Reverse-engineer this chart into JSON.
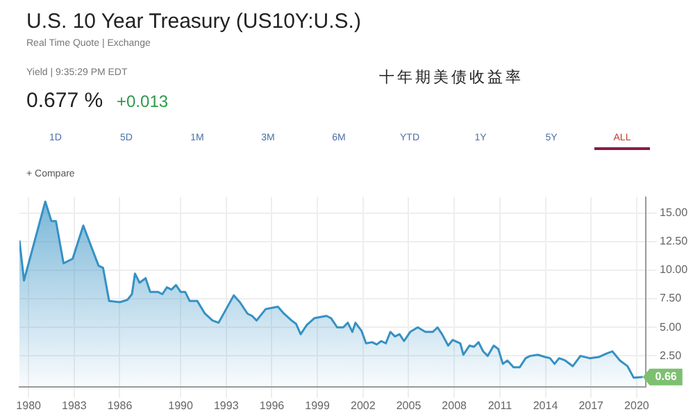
{
  "chart_data": {
    "type": "area",
    "title": "U.S. 10 Year Treasury (US10Y:U.S.)",
    "annotations": [
      "Real Time Quote | Exchange",
      "Yield | 9:35:29 PM EDT",
      "0.677 %",
      "+0.013",
      "十年期美债收益率",
      "1D",
      "5D",
      "1M",
      "3M",
      "6M",
      "YTD",
      "1Y",
      "5Y",
      "ALL",
      "+ Compare",
      {
        "text": "0.66",
        "x": 2020.4,
        "y": 0.66
      }
    ],
    "x": [
      1979.4,
      1979.7,
      1981.1,
      1981.5,
      1981.8,
      1982.3,
      1982.9,
      1983.6,
      1984.6,
      1984.9,
      1985.3,
      1986.0,
      1986.5,
      1986.8,
      1987.0,
      1987.3,
      1987.7,
      1988.0,
      1988.5,
      1988.8,
      1989.1,
      1989.4,
      1989.7,
      1990.0,
      1990.3,
      1990.6,
      1991.1,
      1991.6,
      1992.1,
      1992.5,
      1993.0,
      1993.5,
      1993.9,
      1994.4,
      1994.7,
      1995.0,
      1995.6,
      1996.0,
      1996.4,
      1996.8,
      1997.3,
      1997.6,
      1997.9,
      1998.3,
      1998.8,
      1999.6,
      1999.9,
      2000.3,
      2000.7,
      2001.0,
      2001.3,
      2001.5,
      2001.9,
      2002.2,
      2002.6,
      2002.9,
      2003.2,
      2003.5,
      2003.8,
      2004.1,
      2004.4,
      2004.7,
      2005.1,
      2005.6,
      2006.1,
      2006.6,
      2006.9,
      2007.2,
      2007.6,
      2007.9,
      2008.4,
      2008.6,
      2009.0,
      2009.3,
      2009.6,
      2009.9,
      2010.2,
      2010.6,
      2010.9,
      2011.2,
      2011.5,
      2011.9,
      2012.3,
      2012.7,
      2013.0,
      2013.5,
      2014.0,
      2014.3,
      2014.6,
      2014.9,
      2015.3,
      2015.8,
      2016.3,
      2016.9,
      2017.5,
      2018.0,
      2018.4,
      2018.9,
      2019.4,
      2019.8,
      2020.4
    ],
    "series": [
      {
        "color": "#3591c4",
        "values": [
          12.6,
          9.1,
          16.0,
          14.3,
          14.3,
          10.6,
          11.0,
          13.9,
          10.4,
          10.2,
          7.3,
          7.2,
          7.4,
          7.9,
          9.7,
          8.9,
          9.3,
          8.1,
          8.1,
          7.9,
          8.5,
          8.3,
          8.7,
          8.1,
          8.1,
          7.3,
          7.3,
          6.2,
          5.6,
          5.4,
          6.6,
          7.8,
          7.2,
          6.2,
          6.0,
          5.6,
          6.6,
          6.7,
          6.8,
          6.2,
          5.6,
          5.3,
          4.4,
          5.2,
          5.8,
          6.0,
          5.8,
          5.0,
          5.0,
          5.4,
          4.6,
          5.4,
          4.7,
          3.6,
          3.7,
          3.5,
          3.8,
          3.6,
          4.6,
          4.2,
          4.4,
          3.8,
          4.6,
          5.0,
          4.6,
          4.6,
          5.0,
          4.4,
          3.4,
          3.9,
          3.6,
          2.6,
          3.4,
          3.3,
          3.7,
          2.9,
          2.5,
          3.4,
          3.1,
          1.8,
          2.1,
          1.5,
          1.5,
          2.3,
          2.5,
          2.6,
          2.4,
          2.3,
          1.8,
          2.3,
          2.1,
          1.6,
          2.5,
          2.3,
          2.4,
          2.7,
          2.9,
          2.1,
          1.6,
          0.6,
          0.66
        ]
      }
    ],
    "xlim": [
      1979.4,
      2020.6
    ],
    "xticks": [
      1980,
      1983,
      1986,
      1990,
      1993,
      1996,
      1999,
      2002,
      2005,
      2008,
      2011,
      2014,
      2017,
      2020
    ],
    "ylim": [
      -0.2,
      16.4
    ],
    "yticks": [
      {
        "value": 2.5,
        "label": "2.50"
      },
      {
        "value": 5,
        "label": "5.00"
      },
      {
        "value": 7.5,
        "label": "7.50"
      },
      {
        "value": 10,
        "label": "10.00"
      },
      {
        "value": 12.5,
        "label": "12.50"
      },
      {
        "value": 15,
        "label": "15.00"
      }
    ],
    "grid": true,
    "legend": false,
    "marker": "none"
  }
}
